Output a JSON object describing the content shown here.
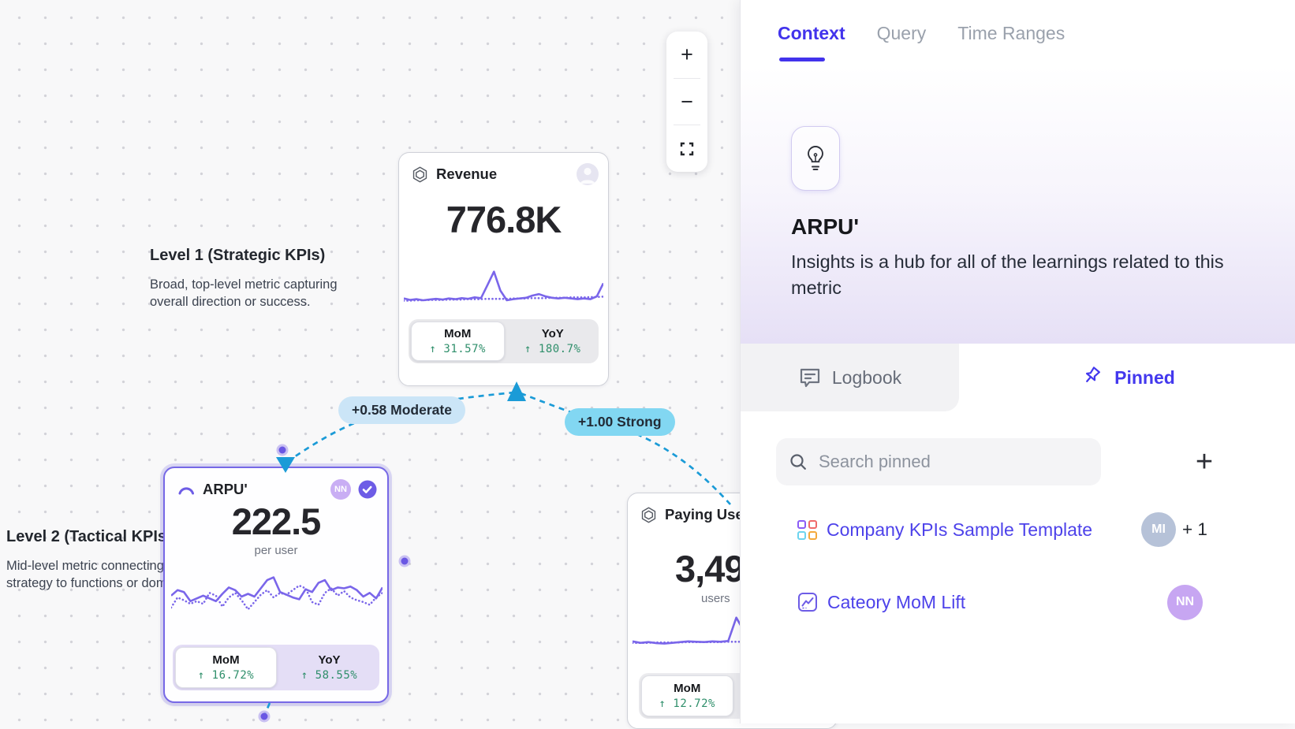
{
  "colors": {
    "accent": "#4233ec",
    "edge_blue": "#1b9bd7",
    "spark_purple": "#7a66ea",
    "positive_green": "#2f8f6b"
  },
  "canvas": {
    "zoom_toolbar": {
      "zoom_in_label": "+",
      "zoom_out_label": "−"
    },
    "level_labels": [
      {
        "title": "Level 1 (Strategic KPIs)",
        "line1": "Broad, top-level metric capturing",
        "line2": "overall direction or success."
      },
      {
        "title": "Level 2 (Tactical KPIs",
        "line1": "Mid-level metric connecting",
        "line2": "strategy to functions or doma"
      }
    ],
    "edge_labels": [
      {
        "text": "+0.58 Moderate"
      },
      {
        "text": "+1.00 Strong"
      }
    ],
    "cards": {
      "revenue": {
        "title": "Revenue",
        "value": "776.8K",
        "mom_label": "MoM",
        "mom_value": "↑ 31.57%",
        "yoy_label": "YoY",
        "yoy_value": "↑ 180.7%"
      },
      "arpu": {
        "title": "ARPU'",
        "avatar": "NN",
        "value": "222.5",
        "unit": "per user",
        "mom_label": "MoM",
        "mom_value": "↑ 16.72%",
        "yoy_label": "YoY",
        "yoy_value": "↑ 58.55%"
      },
      "paying": {
        "title": "Paying Users'",
        "value": "3,49",
        "unit": "users",
        "mom_label": "MoM",
        "mom_value": "↑ 12.72%"
      }
    }
  },
  "sparklines": {
    "revenue": {
      "solid": [
        18,
        14,
        16,
        13,
        15,
        17,
        15,
        18,
        16,
        19,
        17,
        21,
        19,
        55,
        92,
        40,
        13,
        16,
        18,
        20,
        26,
        30,
        24,
        20,
        18,
        20,
        18,
        16,
        18,
        16,
        24,
        60
      ],
      "dotted": [
        12,
        12,
        13,
        13,
        14,
        14,
        14,
        15,
        15,
        15,
        16,
        16,
        16,
        17,
        17,
        17,
        17,
        18,
        18,
        18,
        19,
        19,
        19,
        20,
        20,
        20,
        21,
        21,
        21,
        22,
        22,
        23
      ]
    },
    "arpu": {
      "solid": [
        40,
        52,
        48,
        28,
        34,
        40,
        34,
        28,
        44,
        58,
        52,
        38,
        44,
        38,
        56,
        74,
        80,
        48,
        42,
        36,
        32,
        54,
        48,
        68,
        74,
        52,
        58,
        56,
        60,
        52,
        38,
        46,
        34,
        58
      ],
      "dotted": [
        14,
        36,
        30,
        22,
        28,
        22,
        46,
        40,
        16,
        36,
        46,
        30,
        10,
        26,
        42,
        52,
        36,
        46,
        42,
        52,
        62,
        56,
        26,
        20,
        46,
        56,
        40,
        50,
        36,
        30,
        26,
        20,
        36,
        46
      ]
    },
    "paying": {
      "solid": [
        26,
        22,
        24,
        21,
        20,
        22,
        24,
        26,
        25,
        24,
        26,
        25,
        27,
        90,
        52,
        24,
        25,
        26,
        25,
        27,
        26,
        28,
        27,
        29,
        28,
        31
      ],
      "dotted": [
        22,
        22,
        22,
        23,
        23,
        23,
        23,
        24,
        24,
        24,
        24,
        24,
        25,
        25,
        25,
        25,
        25,
        26,
        26,
        26,
        26,
        26,
        27,
        27,
        27,
        27
      ]
    }
  },
  "panel": {
    "tabs": [
      {
        "label": "Context"
      },
      {
        "label": "Query"
      },
      {
        "label": "Time Ranges"
      }
    ],
    "active_tab": "Context",
    "metric": {
      "title": "ARPU'",
      "description": "Insights is a hub for all of the learnings related to this metric"
    },
    "subtabs": {
      "logbook": "Logbook",
      "pinned": "Pinned"
    },
    "search": {
      "placeholder": "Search pinned",
      "add_label": "+"
    },
    "pinned_items": [
      {
        "label": "Company KPIs Sample Template",
        "avatar": "MI",
        "extra": "+ 1"
      },
      {
        "label": "Cateory MoM Lift",
        "avatar": "NN"
      }
    ]
  }
}
